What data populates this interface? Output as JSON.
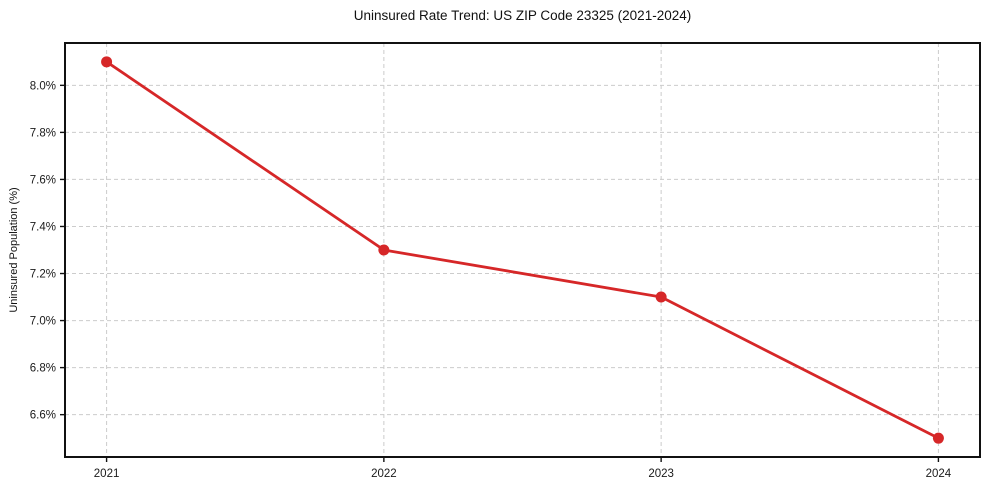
{
  "chart_data": {
    "type": "line",
    "title": "Uninsured Rate Trend: US ZIP Code 23325 (2021-2024)",
    "xlabel": "",
    "ylabel": "Uninsured Population (%)",
    "x": [
      2021,
      2022,
      2023,
      2024
    ],
    "values": [
      8.1,
      7.3,
      7.1,
      6.5
    ],
    "xtick_labels": [
      "2021",
      "2022",
      "2023",
      "2024"
    ],
    "yticks": [
      6.6,
      6.8,
      7.0,
      7.2,
      7.4,
      7.6,
      7.8,
      8.0
    ],
    "ytick_labels": [
      "6.6%",
      "6.8%",
      "7.0%",
      "7.2%",
      "7.4%",
      "7.6%",
      "7.8%",
      "8.0%"
    ],
    "xlim": [
      2020.85,
      2024.15
    ],
    "ylim": [
      6.42,
      8.18
    ],
    "grid": true,
    "grid_style": "dashed",
    "legend_position": "none",
    "colors": {
      "line": "#d62728",
      "marker": "#d62728",
      "grid": "#cccccc",
      "spine": "#111111",
      "tick": "#111111",
      "text": "#1a1a1a",
      "background": "#ffffff"
    }
  }
}
